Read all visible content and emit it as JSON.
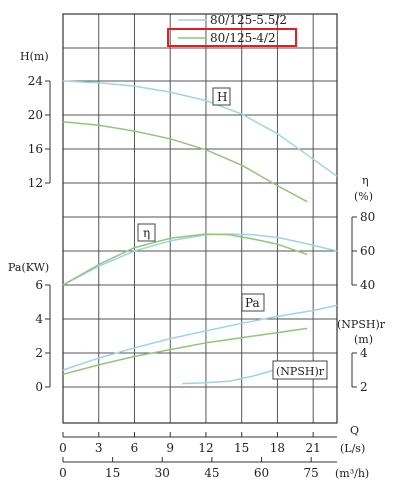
{
  "chart_data": {
    "type": "line",
    "legend": {
      "placement": "top-right",
      "entries": [
        {
          "label": "80/125-5.5/2",
          "color": "#9fd4e4",
          "highlighted": false
        },
        {
          "label": "80/125-4/2",
          "color": "#93c47d",
          "highlighted": true
        }
      ],
      "highlight_color": "#e02020"
    },
    "x_axes": {
      "flow_ls": {
        "label": "(L/s)",
        "ticks": [
          "0",
          "3",
          "6",
          "9",
          "12",
          "15",
          "18",
          "21"
        ],
        "range": [
          0,
          23
        ]
      },
      "flow_m3h": {
        "label": "(m³/h)",
        "ticks": [
          "0",
          "15",
          "30",
          "45",
          "60",
          "75"
        ],
        "range": [
          0,
          82.8
        ]
      },
      "q_label": "Q"
    },
    "panels": {
      "head": {
        "axis_label": "H(m)",
        "ticks": [
          "12",
          "16",
          "20",
          "24"
        ],
        "range": [
          12,
          24
        ],
        "box_label": "H",
        "series": [
          {
            "name": "80/125-5.5/2",
            "x": [
              0,
              3,
              6,
              9,
              12,
              15,
              18,
              21,
              23
            ],
            "y": [
              24,
              23.8,
              23.4,
              22.7,
              21.7,
              20.1,
              17.8,
              14.8,
              12.8
            ]
          },
          {
            "name": "80/125-4/2",
            "x": [
              0,
              3,
              6,
              9,
              12,
              15,
              18,
              20.5
            ],
            "y": [
              19.2,
              18.8,
              18.1,
              17.2,
              15.9,
              14.1,
              11.7,
              9.8
            ]
          }
        ]
      },
      "efficiency": {
        "axis_label": "η",
        "unit": "(%)",
        "ticks": [
          "40",
          "60",
          "80"
        ],
        "range": [
          40,
          80
        ],
        "box_label": "η",
        "series": [
          {
            "name": "80/125-5.5/2",
            "x": [
              0,
              3,
              6,
              9,
              12,
              14,
              16,
              18,
              20,
              23
            ],
            "y": [
              40,
              51,
              60,
              66,
              69.5,
              70,
              69.5,
              68,
              65,
              60
            ]
          },
          {
            "name": "80/125-4/2",
            "x": [
              0,
              3,
              6,
              9,
              12,
              14,
              16,
              18,
              20.5
            ],
            "y": [
              40,
              52,
              62,
              67.5,
              70,
              69.5,
              67,
              64,
              58
            ]
          }
        ]
      },
      "power": {
        "axis_label": "Pa(KW)",
        "ticks": [
          "0",
          "2",
          "4",
          "6"
        ],
        "range": [
          0,
          6.5
        ],
        "box_label": "Pa",
        "series": [
          {
            "name": "80/125-5.5/2",
            "x": [
              0,
              3,
              6,
              9,
              12,
              15,
              18,
              21,
              23
            ],
            "y": [
              1.0,
              1.7,
              2.3,
              2.85,
              3.3,
              3.75,
              4.15,
              4.5,
              4.8
            ]
          },
          {
            "name": "80/125-4/2",
            "x": [
              0,
              3,
              6,
              9,
              12,
              15,
              18,
              20.5
            ],
            "y": [
              0.75,
              1.3,
              1.8,
              2.2,
              2.6,
              2.9,
              3.2,
              3.45
            ]
          }
        ]
      },
      "npsh": {
        "axis_label": "(NPSH)r",
        "unit": "(m)",
        "ticks": [
          "2",
          "4"
        ],
        "range": [
          2,
          4
        ],
        "box_label": "(NPSH)r",
        "series": [
          {
            "name": "80/125-5.5/2",
            "x": [
              10,
              12,
              14,
              16,
              18,
              19.5
            ],
            "y": [
              2.2,
              2.25,
              2.35,
              2.65,
              3.05,
              3.4
            ]
          }
        ]
      }
    }
  }
}
